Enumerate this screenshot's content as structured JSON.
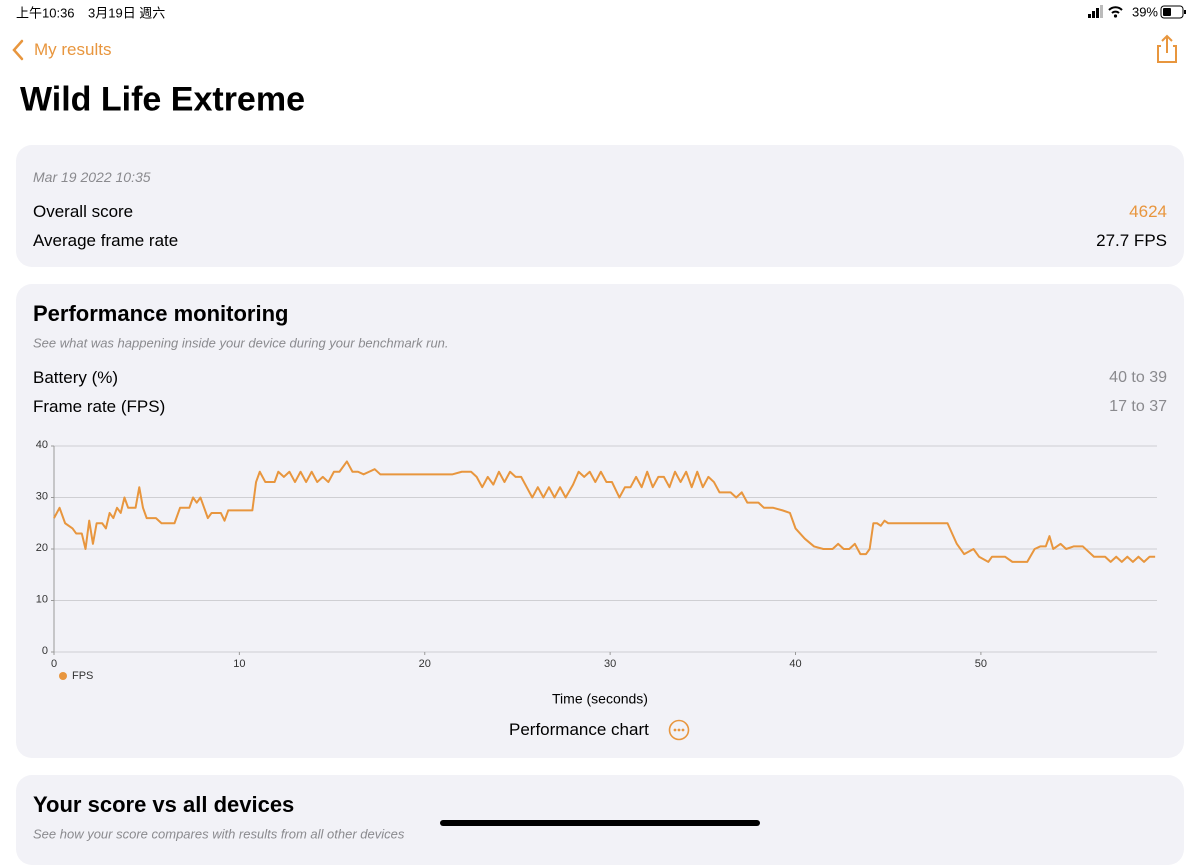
{
  "status_bar": {
    "time": "上午10:36",
    "date": "3月19日 週六",
    "battery": "39%"
  },
  "nav": {
    "back": "My results"
  },
  "header": {
    "title": "Wild Life Extreme"
  },
  "summary": {
    "date": "Mar 19 2022 10:35",
    "rows": [
      {
        "label": "Overall score",
        "value": "4624"
      },
      {
        "label": "Average frame rate",
        "value": "27.7 FPS"
      }
    ]
  },
  "performance": {
    "title": "Performance monitoring",
    "subtitle": "See what was happening inside your device during your benchmark run.",
    "rows": [
      {
        "label": "Battery (%)",
        "value": "40 to 39"
      },
      {
        "label": "Frame rate (FPS)",
        "value": "17 to 37"
      }
    ],
    "chart_menu": "Performance chart"
  },
  "comparison": {
    "title": "Your score vs all devices",
    "subtitle": "See how your score compares with results from all other devices"
  },
  "chart_data": {
    "type": "line",
    "x_label": "Time (seconds)",
    "x": [
      0,
      0.3,
      0.6,
      1.0,
      1.2,
      1.5,
      1.7,
      1.9,
      2.1,
      2.3,
      2.6,
      2.8,
      3.0,
      3.2,
      3.4,
      3.6,
      3.8,
      4.0,
      4.4,
      4.6,
      4.8,
      5.0,
      5.5,
      5.8,
      6.5,
      6.8,
      7.3,
      7.5,
      7.7,
      7.9,
      8.1,
      8.3,
      8.5,
      9.0,
      9.2,
      9.4,
      10.7,
      10.9,
      11.1,
      11.4,
      11.9,
      12.1,
      12.4,
      12.7,
      13.0,
      13.3,
      13.6,
      13.9,
      14.2,
      14.5,
      14.8,
      15.1,
      15.4,
      15.8,
      16.1,
      16.4,
      16.7,
      17.0,
      17.3,
      17.6,
      18.5,
      19.5,
      20.5,
      21.5,
      22.0,
      22.5,
      22.8,
      23.1,
      23.4,
      23.7,
      24.0,
      24.3,
      24.6,
      24.9,
      25.2,
      25.5,
      25.8,
      26.1,
      26.4,
      26.7,
      27.0,
      27.3,
      27.6,
      28.0,
      28.3,
      28.6,
      28.9,
      29.2,
      29.5,
      29.8,
      30.1,
      30.5,
      30.8,
      31.1,
      31.4,
      31.7,
      32.0,
      32.3,
      32.6,
      32.9,
      33.2,
      33.5,
      33.8,
      34.1,
      34.4,
      34.7,
      35.0,
      35.3,
      35.6,
      35.9,
      36.5,
      36.8,
      37.1,
      37.4,
      38.0,
      38.3,
      38.8,
      39.3,
      39.7,
      40.0,
      40.5,
      41.0,
      41.5,
      42.0,
      42.3,
      42.6,
      42.9,
      43.2,
      43.5,
      43.8,
      44.0,
      44.2,
      44.4,
      44.6,
      44.8,
      45.0,
      48.2,
      48.7,
      49.1,
      49.6,
      49.9,
      50.4,
      50.6,
      51.3,
      51.7,
      52.5,
      52.9,
      53.2,
      53.5,
      53.7,
      53.9,
      54.3,
      54.6,
      55.0,
      55.5,
      56.1,
      56.7,
      57.0,
      57.3,
      57.6,
      57.9,
      58.2,
      58.5,
      58.8,
      59.1,
      59.4
    ],
    "series": [
      {
        "name": "FPS",
        "color": "#e8963e",
        "values": [
          26,
          28,
          25,
          24,
          23,
          23,
          20,
          25.5,
          21,
          25,
          25,
          24,
          27,
          26,
          28,
          27,
          30,
          28,
          28,
          32,
          28,
          26,
          26,
          25,
          25,
          28,
          28,
          30,
          29,
          30,
          28,
          26,
          27,
          27,
          25.5,
          27.5,
          27.5,
          33,
          35,
          33,
          33,
          35,
          34,
          35,
          33,
          35,
          33,
          35,
          33,
          34,
          33,
          35,
          35,
          37,
          35,
          35,
          34.5,
          35,
          35.5,
          34.5,
          34.5,
          34.5,
          34.5,
          34.5,
          35,
          35,
          34,
          32,
          34,
          32.5,
          35,
          33,
          35,
          34,
          34,
          32,
          30,
          32,
          30,
          32,
          30,
          32,
          30,
          32.5,
          35,
          34,
          35,
          33,
          35,
          33,
          33,
          30,
          32,
          32,
          34,
          32,
          35,
          32,
          34,
          34,
          32,
          35,
          33,
          35,
          32,
          35,
          32,
          34,
          33,
          31,
          31,
          30,
          31,
          29,
          29,
          28,
          28,
          27.5,
          27,
          24,
          22,
          20.5,
          20,
          20,
          21,
          20,
          20,
          21,
          19,
          19,
          20,
          25,
          25,
          24.5,
          25.5,
          25,
          25,
          21,
          19,
          20,
          18.5,
          17.5,
          18.5,
          18.5,
          17.5,
          17.5,
          20,
          20.5,
          20.5,
          22.5,
          20,
          21,
          20,
          20.5,
          20.5,
          18.5,
          18.5,
          17.5,
          18.5,
          17.5,
          18.5,
          17.5,
          18.5,
          17.5,
          18.5,
          18.5
        ]
      }
    ],
    "xlim": [
      0,
      59.5
    ],
    "xticks": [
      0,
      10,
      20,
      30,
      40,
      50
    ],
    "ylim": [
      0,
      40
    ],
    "yticks": [
      0,
      10,
      20,
      30,
      40
    ],
    "grid": true,
    "legend": "bottom-left"
  }
}
